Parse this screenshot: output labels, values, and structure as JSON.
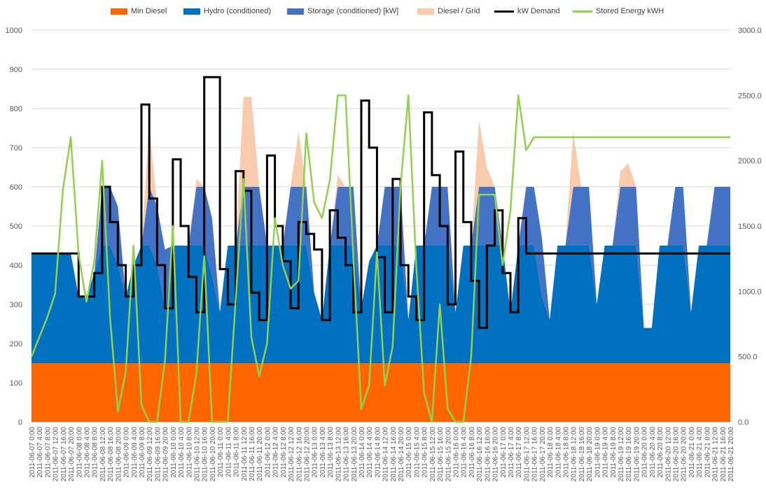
{
  "chart_data": {
    "type": "area",
    "title": "",
    "xlabel": "",
    "ylabel": "",
    "y2label": "",
    "ylim": [
      0,
      1000
    ],
    "y2lim": [
      0,
      3000
    ],
    "yticks": [
      0,
      100,
      200,
      300,
      400,
      500,
      600,
      700,
      800,
      900,
      1000
    ],
    "y2ticks": [
      "0.0",
      "500.0",
      "1000.0",
      "1500.0",
      "2000.0",
      "2500.0",
      "3000.0"
    ],
    "grid": true,
    "legend_position": "top",
    "x_categories": [
      "2011-06-07 0:00",
      "2011-06-07 4:00",
      "2011-06-07 8:00",
      "2011-06-07 12:00",
      "2011-06-07 16:00",
      "2011-06-07 20:00",
      "2011-06-08 0:00",
      "2011-06-08 4:00",
      "2011-06-08 8:00",
      "2011-06-08 12:00",
      "2011-06-08 16:00",
      "2011-06-08 20:00",
      "2011-06-09 0:00",
      "2011-06-09 4:00",
      "2011-06-09 8:00",
      "2011-06-09 12:00",
      "2011-06-09 16:00",
      "2011-06-09 20:00",
      "2011-06-10 0:00",
      "2011-06-10 4:00",
      "2011-06-10 8:00",
      "2011-06-10 12:00",
      "2011-06-10 16:00",
      "2011-06-10 20:00",
      "2011-06-11 0:00",
      "2011-06-11 4:00",
      "2011-06-11 8:00",
      "2011-06-11 12:00",
      "2011-06-11 16:00",
      "2011-06-11 20:00",
      "2011-06-12 0:00",
      "2011-06-12 4:00",
      "2011-06-12 8:00",
      "2011-06-12 12:00",
      "2011-06-12 16:00",
      "2011-06-12 20:00",
      "2011-06-13 0:00",
      "2011-06-13 4:00",
      "2011-06-13 8:00",
      "2011-06-13 12:00",
      "2011-06-13 16:00",
      "2011-06-13 20:00",
      "2011-06-14 0:00",
      "2011-06-14 4:00",
      "2011-06-14 8:00",
      "2011-06-14 12:00",
      "2011-06-14 16:00",
      "2011-06-14 20:00",
      "2011-06-15 0:00",
      "2011-06-15 4:00",
      "2011-06-15 8:00",
      "2011-06-15 12:00",
      "2011-06-15 16:00",
      "2011-06-15 20:00",
      "2011-06-16 0:00",
      "2011-06-16 4:00",
      "2011-06-16 8:00",
      "2011-06-16 12:00",
      "2011-06-16 16:00",
      "2011-06-16 20:00",
      "2011-06-17 0:00",
      "2011-06-17 4:00",
      "2011-06-17 8:00",
      "2011-06-17 12:00",
      "2011-06-17 16:00",
      "2011-06-17 20:00",
      "2011-06-18 0:00",
      "2011-06-18 4:00",
      "2011-06-18 8:00",
      "2011-06-18 12:00",
      "2011-06-18 16:00",
      "2011-06-18 20:00",
      "2011-06-19 0:00",
      "2011-06-19 4:00",
      "2011-06-19 8:00",
      "2011-06-19 12:00",
      "2011-06-19 16:00",
      "2011-06-19 20:00",
      "2011-06-20 0:00",
      "2011-06-20 4:00",
      "2011-06-20 8:00",
      "2011-06-20 12:00",
      "2011-06-20 16:00",
      "2011-06-20 20:00",
      "2011-06-21 0:00",
      "2011-06-21 4:00",
      "2011-06-21 8:00",
      "2011-06-21 12:00",
      "2011-06-21 16:00",
      "2011-06-21 20:00"
    ],
    "series": [
      {
        "name": "Min Diesel",
        "kind": "area",
        "axis": "primary",
        "color": "#FF6600",
        "values": [
          150,
          150,
          150,
          150,
          150,
          150,
          150,
          150,
          150,
          150,
          150,
          150,
          150,
          150,
          150,
          150,
          150,
          150,
          150,
          150,
          150,
          150,
          150,
          150,
          150,
          150,
          150,
          150,
          150,
          150,
          150,
          150,
          150,
          150,
          150,
          150,
          150,
          150,
          150,
          150,
          150,
          150,
          150,
          150,
          150,
          150,
          150,
          150,
          150,
          150,
          150,
          150,
          150,
          150,
          150,
          150,
          150,
          150,
          150,
          150,
          150,
          150,
          150,
          150,
          150,
          150,
          150,
          150,
          150,
          150,
          150,
          150,
          150,
          150,
          150,
          150,
          150,
          150,
          150,
          150,
          150,
          150,
          150,
          150,
          150,
          150,
          150,
          150,
          150,
          150
        ]
      },
      {
        "name": "Hydro (conditioned)",
        "kind": "area",
        "axis": "primary",
        "color": "#0070C0",
        "values": [
          280,
          280,
          280,
          280,
          280,
          280,
          170,
          170,
          230,
          300,
          300,
          250,
          170,
          250,
          300,
          300,
          250,
          140,
          300,
          300,
          300,
          300,
          300,
          220,
          130,
          300,
          300,
          300,
          300,
          300,
          300,
          300,
          300,
          300,
          300,
          300,
          180,
          110,
          300,
          300,
          300,
          300,
          140,
          260,
          300,
          300,
          300,
          300,
          110,
          300,
          300,
          300,
          300,
          300,
          130,
          300,
          300,
          300,
          300,
          300,
          300,
          130,
          300,
          300,
          300,
          170,
          110,
          300,
          300,
          300,
          300,
          300,
          150,
          300,
          300,
          300,
          300,
          300,
          90,
          90,
          300,
          300,
          300,
          300,
          130,
          300,
          300,
          300,
          300,
          300
        ]
      },
      {
        "name": "Storage (conditioned) [kW]",
        "kind": "area",
        "axis": "primary",
        "color": "#4472C4",
        "values": [
          0,
          0,
          0,
          0,
          0,
          0,
          0,
          0,
          0,
          150,
          150,
          150,
          0,
          0,
          0,
          150,
          150,
          150,
          0,
          0,
          0,
          150,
          150,
          150,
          0,
          0,
          0,
          150,
          150,
          150,
          0,
          0,
          0,
          150,
          150,
          150,
          0,
          0,
          0,
          150,
          150,
          150,
          0,
          0,
          0,
          150,
          150,
          150,
          0,
          0,
          0,
          150,
          150,
          150,
          0,
          0,
          0,
          150,
          150,
          150,
          0,
          0,
          0,
          150,
          150,
          150,
          0,
          0,
          0,
          150,
          150,
          150,
          0,
          0,
          0,
          150,
          150,
          150,
          0,
          0,
          0,
          0,
          150,
          150,
          0,
          0,
          0,
          150,
          150,
          150
        ]
      },
      {
        "name": "Diesel / Grid",
        "kind": "area",
        "axis": "primary",
        "color": "#F8CBAD",
        "values": [
          0,
          0,
          0,
          0,
          0,
          0,
          0,
          0,
          0,
          0,
          0,
          0,
          0,
          0,
          0,
          160,
          0,
          0,
          0,
          0,
          0,
          20,
          0,
          0,
          0,
          0,
          0,
          230,
          230,
          0,
          0,
          0,
          0,
          0,
          140,
          0,
          0,
          0,
          0,
          30,
          0,
          0,
          0,
          0,
          0,
          0,
          0,
          0,
          0,
          0,
          0,
          0,
          0,
          0,
          0,
          0,
          0,
          170,
          50,
          0,
          0,
          0,
          0,
          0,
          0,
          0,
          0,
          0,
          0,
          140,
          0,
          0,
          0,
          0,
          0,
          40,
          60,
          0,
          0,
          0,
          0,
          0,
          0,
          0,
          0,
          0,
          0,
          0,
          0,
          0
        ]
      },
      {
        "name": "kW Demand",
        "kind": "step-line",
        "axis": "primary",
        "color": "#000000",
        "values": [
          430,
          430,
          430,
          430,
          430,
          430,
          320,
          320,
          380,
          600,
          510,
          400,
          320,
          400,
          810,
          570,
          400,
          290,
          670,
          500,
          370,
          280,
          880,
          880,
          390,
          300,
          640,
          590,
          330,
          260,
          680,
          500,
          410,
          290,
          510,
          480,
          440,
          260,
          540,
          470,
          400,
          280,
          820,
          700,
          420,
          280,
          620,
          400,
          320,
          260,
          790,
          630,
          500,
          300,
          690,
          510,
          360,
          240,
          450,
          540,
          380,
          280,
          520,
          430,
          430,
          430,
          430,
          430,
          430,
          430,
          430,
          430,
          430,
          430,
          430,
          430,
          430,
          430,
          430,
          430,
          430,
          430,
          430,
          430,
          430,
          430,
          430,
          430,
          430,
          430
        ]
      },
      {
        "name": "Stored Energy kWH",
        "kind": "line",
        "axis": "secondary",
        "color": "#92D050",
        "values": [
          500,
          650,
          800,
          980,
          1780,
          2180,
          1280,
          920,
          1230,
          2000,
          800,
          80,
          380,
          1350,
          130,
          0,
          0,
          470,
          1500,
          0,
          0,
          370,
          1270,
          0,
          0,
          0,
          930,
          1860,
          650,
          350,
          600,
          1560,
          1200,
          1020,
          1080,
          2210,
          1680,
          1560,
          1850,
          2500,
          2500,
          1250,
          100,
          280,
          1300,
          280,
          580,
          1800,
          2500,
          1200,
          220,
          0,
          900,
          100,
          0,
          0,
          500,
          1740,
          1740,
          1740,
          1200,
          1620,
          2500,
          2080,
          2180,
          2180,
          2180,
          2180,
          2180,
          2180,
          2180,
          2180,
          2180,
          2180,
          2180,
          2180,
          2180,
          2180,
          2180,
          2180,
          2180,
          2180,
          2180,
          2180,
          2180,
          2180,
          2180,
          2180,
          2180,
          2180
        ]
      }
    ]
  }
}
